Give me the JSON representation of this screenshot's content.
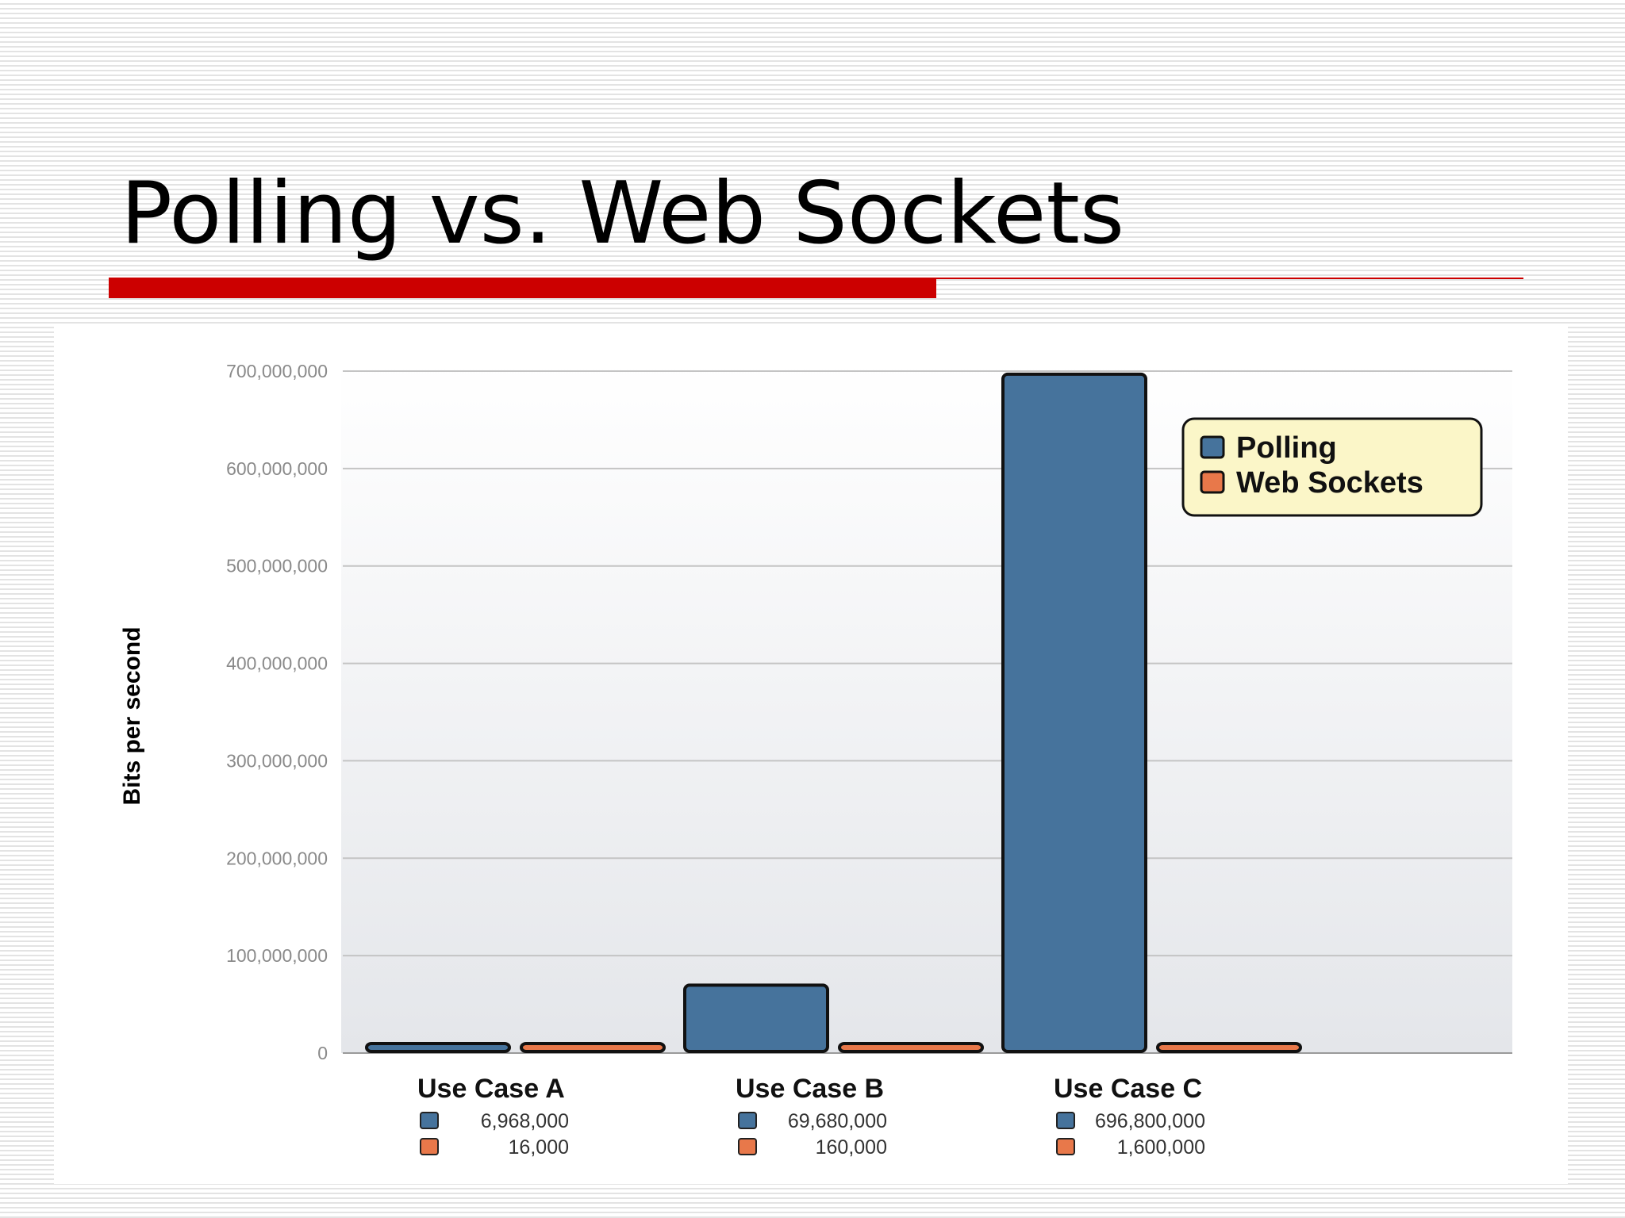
{
  "slide": {
    "title": "Polling vs. Web Sockets"
  },
  "colors": {
    "accent_red": "#cc0000",
    "polling": "#46739c",
    "websockets": "#e8784a",
    "legend_bg": "#fbf6c8"
  },
  "chart_data": {
    "type": "bar",
    "title": "",
    "xlabel": "",
    "ylabel": "Bits per second",
    "ylim": [
      0,
      700000000
    ],
    "yticks": [
      0,
      100000000,
      200000000,
      300000000,
      400000000,
      500000000,
      600000000,
      700000000
    ],
    "ytick_labels": [
      "0",
      "100,000,000",
      "200,000,000",
      "300,000,000",
      "400,000,000",
      "500,000,000",
      "600,000,000",
      "700,000,000"
    ],
    "categories": [
      "Use Case A",
      "Use Case B",
      "Use Case C"
    ],
    "series": [
      {
        "name": "Polling",
        "color": "#46739c",
        "values": [
          6968000,
          69680000,
          696800000
        ],
        "labels": [
          "6,968,000",
          "69,680,000",
          "696,800,000"
        ]
      },
      {
        "name": "Web Sockets",
        "color": "#e8784a",
        "values": [
          16000,
          160000,
          1600000
        ],
        "labels": [
          "16,000",
          "160,000",
          "1,600,000"
        ]
      }
    ],
    "grid": true,
    "legend": "top-right"
  }
}
